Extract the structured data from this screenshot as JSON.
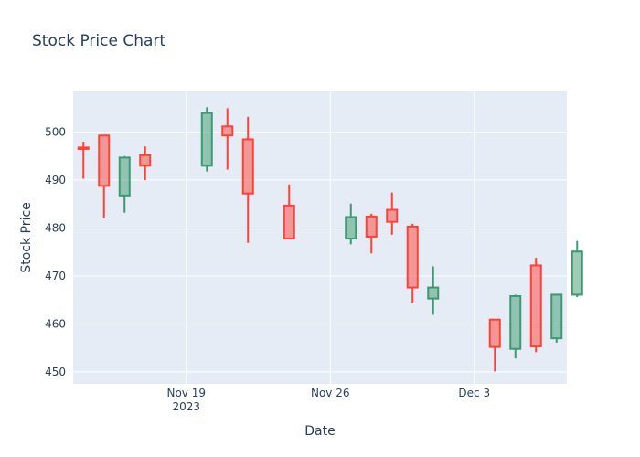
{
  "chart_data": {
    "type": "candlestick",
    "title": "Stock Price Chart",
    "xlabel": "Date",
    "ylabel": "Stock Price",
    "ylim": [
      447.5,
      508.5
    ],
    "xlim": [
      "2023-11-13T12:00",
      "2023-12-07T12:00"
    ],
    "x_ticks": [
      {
        "date": "2023-11-19",
        "label": "Nov 19",
        "sublabel": "2023"
      },
      {
        "date": "2023-11-26",
        "label": "Nov 26",
        "sublabel": ""
      },
      {
        "date": "2023-12-03",
        "label": "Dec 3",
        "sublabel": ""
      }
    ],
    "y_ticks": [
      450,
      460,
      470,
      480,
      490,
      500
    ],
    "grid": true,
    "increasing_color": "#3d9970",
    "decreasing_color": "#ff4136",
    "plot_bg": "#e5ecf6",
    "candles": [
      {
        "date": "2023-11-14",
        "open": 496.8,
        "high": 498.0,
        "low": 490.3,
        "close": 496.5
      },
      {
        "date": "2023-11-15",
        "open": 499.3,
        "high": 499.3,
        "low": 482.0,
        "close": 488.8
      },
      {
        "date": "2023-11-16",
        "open": 486.8,
        "high": 495.0,
        "low": 483.2,
        "close": 494.7
      },
      {
        "date": "2023-11-17",
        "open": 495.2,
        "high": 497.0,
        "low": 490.0,
        "close": 493.0
      },
      {
        "date": "2023-11-20",
        "open": 493.0,
        "high": 505.2,
        "low": 491.8,
        "close": 504.0
      },
      {
        "date": "2023-11-21",
        "open": 501.2,
        "high": 505.0,
        "low": 492.2,
        "close": 499.3
      },
      {
        "date": "2023-11-22",
        "open": 498.5,
        "high": 503.2,
        "low": 476.9,
        "close": 487.2
      },
      {
        "date": "2023-11-24",
        "open": 484.7,
        "high": 489.1,
        "low": 477.6,
        "close": 477.8
      },
      {
        "date": "2023-11-27",
        "open": 477.8,
        "high": 485.1,
        "low": 476.6,
        "close": 482.3
      },
      {
        "date": "2023-11-28",
        "open": 482.4,
        "high": 483.0,
        "low": 474.7,
        "close": 478.2
      },
      {
        "date": "2023-11-29",
        "open": 483.8,
        "high": 487.4,
        "low": 478.6,
        "close": 481.3
      },
      {
        "date": "2023-11-30",
        "open": 480.3,
        "high": 480.9,
        "low": 464.3,
        "close": 467.6
      },
      {
        "date": "2023-12-01",
        "open": 465.3,
        "high": 472.0,
        "low": 461.9,
        "close": 467.6
      },
      {
        "date": "2023-12-04",
        "open": 460.9,
        "high": 460.9,
        "low": 450.1,
        "close": 455.2
      },
      {
        "date": "2023-12-05",
        "open": 454.8,
        "high": 466.1,
        "low": 452.8,
        "close": 465.8
      },
      {
        "date": "2023-12-06",
        "open": 472.2,
        "high": 473.8,
        "low": 454.1,
        "close": 455.3
      },
      {
        "date": "2023-12-07",
        "open": 457.0,
        "high": 466.2,
        "low": 456.1,
        "close": 466.1
      },
      {
        "date": "2023-12-08",
        "open": 466.1,
        "high": 477.3,
        "low": 465.6,
        "close": 475.1
      }
    ]
  }
}
